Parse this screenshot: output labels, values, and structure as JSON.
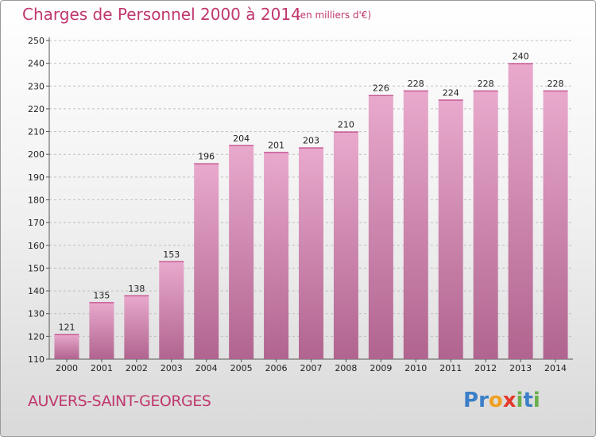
{
  "header": {
    "title": "Charges de Personnel 2000 à 2014",
    "subtitle": "(en milliers d'€)"
  },
  "footer": {
    "place": "AUVERS-SAINT-GEORGES",
    "logo_letters": [
      {
        "char": "P",
        "color": "#3a7fc8"
      },
      {
        "char": "r",
        "color": "#3a7fc8"
      },
      {
        "char": "o",
        "color": "#f0a020"
      },
      {
        "char": "x",
        "color": "#e23a2a"
      },
      {
        "char": "i",
        "color": "#6ab04c"
      },
      {
        "char": "t",
        "color": "#3a7fc8"
      },
      {
        "char": "i",
        "color": "#6ab04c"
      }
    ]
  },
  "colors": {
    "accent": "#c0376e",
    "bar_top": "#e9a9cd",
    "bar_bottom": "#b0648f",
    "grid": "#bfbfbf"
  },
  "chart_data": {
    "type": "bar",
    "categories": [
      "2000",
      "2001",
      "2002",
      "2003",
      "2004",
      "2005",
      "2006",
      "2007",
      "2008",
      "2009",
      "2010",
      "2011",
      "2012",
      "2013",
      "2014"
    ],
    "values": [
      121,
      135,
      138,
      153,
      196,
      204,
      201,
      203,
      210,
      226,
      228,
      224,
      228,
      240,
      228
    ],
    "ylim": [
      110,
      250
    ],
    "yticks": [
      110,
      120,
      130,
      140,
      150,
      160,
      170,
      180,
      190,
      200,
      210,
      220,
      230,
      240,
      250
    ],
    "grid": "horizontal dashed",
    "legend": "none"
  }
}
